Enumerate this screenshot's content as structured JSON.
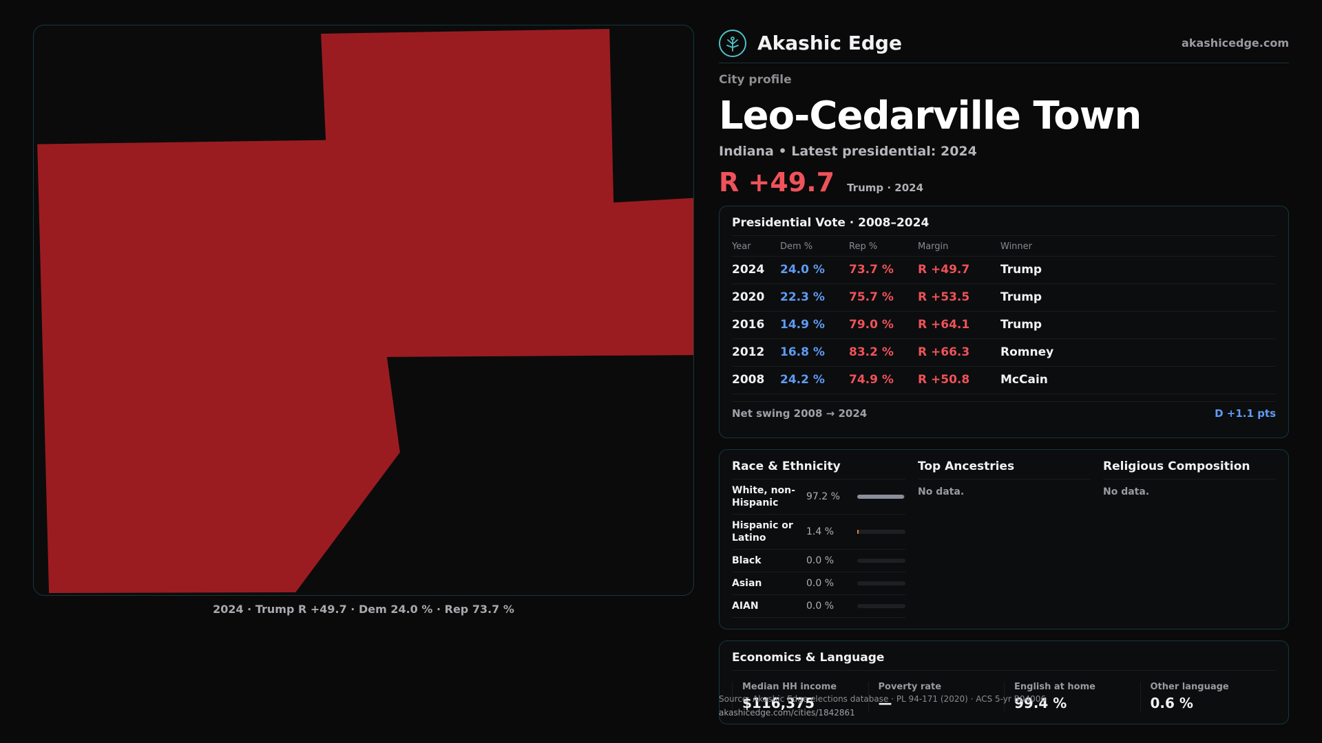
{
  "brand": {
    "name": "Akashic Edge",
    "url": "akashicedge.com",
    "logo_icon": "tree-icon",
    "accent": "#4fc3c9"
  },
  "profile": {
    "eyebrow": "City profile",
    "city": "Leo-Cedarville Town",
    "subtitle": "Indiana • Latest presidential: 2024",
    "margin": "R +49.7",
    "margin_note": "Trump · 2024"
  },
  "map": {
    "caption": "2024 · Trump R +49.7 · Dem 24.0 % · Rep 73.7 %",
    "fill_color": "#9b1c20"
  },
  "presidential": {
    "title": "Presidential Vote · 2008–2024",
    "headers": {
      "year": "Year",
      "dem": "Dem %",
      "rep": "Rep %",
      "margin": "Margin",
      "winner": "Winner"
    },
    "rows": [
      {
        "year": "2024",
        "dem": "24.0 %",
        "rep": "73.7 %",
        "margin": "R +49.7",
        "winner": "Trump"
      },
      {
        "year": "2020",
        "dem": "22.3 %",
        "rep": "75.7 %",
        "margin": "R +53.5",
        "winner": "Trump"
      },
      {
        "year": "2016",
        "dem": "14.9 %",
        "rep": "79.0 %",
        "margin": "R +64.1",
        "winner": "Trump"
      },
      {
        "year": "2012",
        "dem": "16.8 %",
        "rep": "83.2 %",
        "margin": "R +66.3",
        "winner": "Romney"
      },
      {
        "year": "2008",
        "dem": "24.2 %",
        "rep": "74.9 %",
        "margin": "R +50.8",
        "winner": "McCain"
      }
    ],
    "swing_label": "Net swing 2008 → 2024",
    "swing_value": "D +1.1 pts"
  },
  "race": {
    "title": "Race & Ethnicity",
    "rows": [
      {
        "name": "White, non-Hispanic",
        "pct": "97.2 %",
        "share": 0.972,
        "color": "#8a8f9a"
      },
      {
        "name": "Hispanic or Latino",
        "pct": "1.4 %",
        "share": 0.014,
        "color": "#e08a3c"
      },
      {
        "name": "Black",
        "pct": "0.0 %",
        "share": 0,
        "color": "#8a8f9a"
      },
      {
        "name": "Asian",
        "pct": "0.0 %",
        "share": 0,
        "color": "#8a8f9a"
      },
      {
        "name": "AIAN",
        "pct": "0.0 %",
        "share": 0,
        "color": "#8a8f9a"
      }
    ]
  },
  "ancestries": {
    "title": "Top Ancestries",
    "empty": "No data."
  },
  "religion": {
    "title": "Religious Composition",
    "empty": "No data."
  },
  "economics": {
    "title": "Economics & Language",
    "cells": [
      {
        "label": "Median HH income",
        "value": "$116,375"
      },
      {
        "label": "Poverty rate",
        "value": "—"
      },
      {
        "label": "English at home",
        "value": "99.4 %"
      },
      {
        "label": "Other language",
        "value": "0.6 %"
      }
    ]
  },
  "footer": {
    "source": "Source: Akashic Edge elections database · PL 94-171 (2020) · ACS 5-yr B04006",
    "url": "akashicedge.com/cities/1842861"
  }
}
